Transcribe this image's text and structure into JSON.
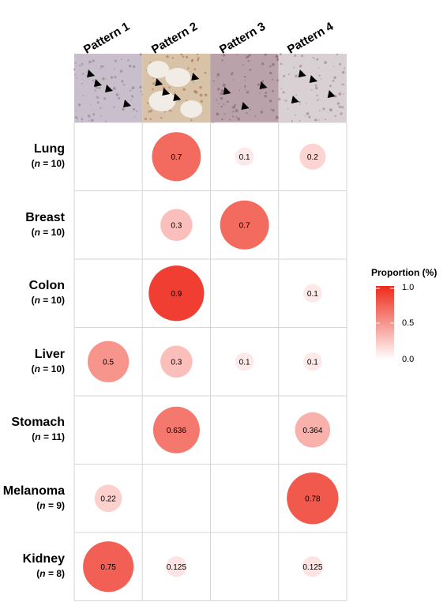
{
  "chart_data": {
    "type": "heatmap",
    "columns": [
      "Pattern 1",
      "Pattern 2",
      "Pattern 3",
      "Pattern 4"
    ],
    "rows": [
      {
        "name": "Lung",
        "n_label": "(n = 10)",
        "n_var": "n",
        "n_rest": " = 10",
        "values": [
          null,
          0.7,
          0.1,
          0.2
        ],
        "labels": [
          "",
          "0.7",
          "0.1",
          "0.2"
        ]
      },
      {
        "name": "Breast",
        "n_label": "(n = 10)",
        "n_var": "n",
        "n_rest": " = 10",
        "values": [
          null,
          0.3,
          0.7,
          null
        ],
        "labels": [
          "",
          "0.3",
          "0.7",
          ""
        ]
      },
      {
        "name": "Colon",
        "n_label": "(n = 10)",
        "n_var": "n",
        "n_rest": " = 10",
        "values": [
          null,
          0.9,
          null,
          0.1
        ],
        "labels": [
          "",
          "0.9",
          "",
          "0.1"
        ]
      },
      {
        "name": "Liver",
        "n_label": "(n = 10)",
        "n_var": "n",
        "n_rest": " = 10",
        "values": [
          0.5,
          0.3,
          0.1,
          0.1
        ],
        "labels": [
          "0.5",
          "0.3",
          "0.1",
          "0.1"
        ]
      },
      {
        "name": "Stomach",
        "n_label": "(n = 11)",
        "n_var": "n",
        "n_rest": " = 11",
        "values": [
          null,
          0.636,
          null,
          0.364
        ],
        "labels": [
          "",
          "0.636",
          "",
          "0.364"
        ]
      },
      {
        "name": "Melanoma",
        "n_label": "(n = 9)",
        "n_var": "n",
        "n_rest": " = 9",
        "values": [
          0.22,
          null,
          null,
          0.78
        ],
        "labels": [
          "0.22",
          "",
          "",
          "0.78"
        ]
      },
      {
        "name": "Kidney",
        "n_label": "(n = 8)",
        "n_var": "n",
        "n_rest": " = 8",
        "values": [
          0.75,
          0.125,
          null,
          0.125
        ],
        "labels": [
          "0.75",
          "0.125",
          "",
          "0.125"
        ]
      }
    ],
    "legend": {
      "title": "Proportion (%)",
      "ticks": [
        "1.0",
        "0.5",
        "0.0"
      ],
      "range": [
        0.0,
        1.0
      ],
      "color_low": "#ffffff",
      "color_high": "#ee2a1b",
      "placement": "right"
    },
    "grid": true,
    "bubble_color": "#ee2a1b",
    "images": [
      {
        "name": "pattern-1-micrograph",
        "tint": "#c9bfcc",
        "markers": 4
      },
      {
        "name": "pattern-2-micrograph",
        "tint": "#d8c2a8",
        "markers": 4
      },
      {
        "name": "pattern-3-micrograph",
        "tint": "#b9a2a9",
        "markers": 3
      },
      {
        "name": "pattern-4-micrograph",
        "tint": "#d8d0d3",
        "markers": 4
      }
    ]
  }
}
